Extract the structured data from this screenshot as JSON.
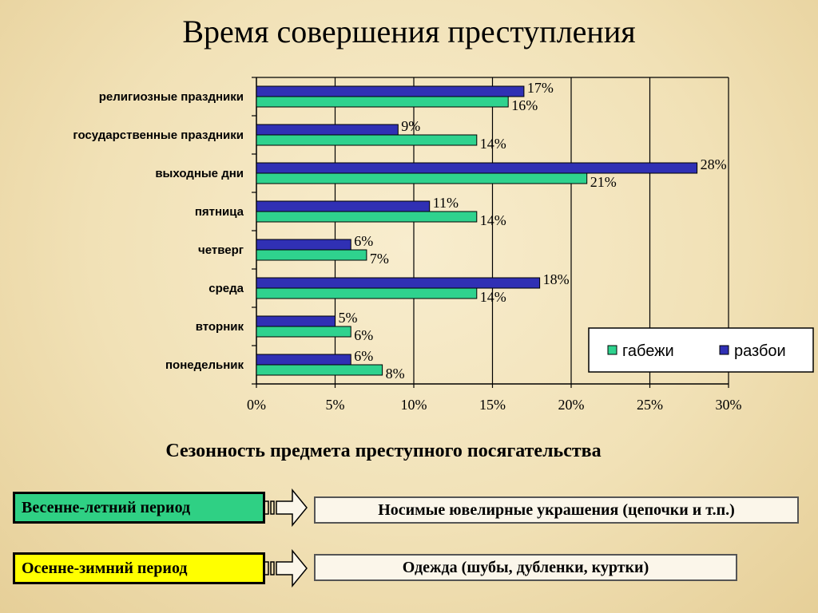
{
  "slide": {
    "title": "Время совершения преступления",
    "subtitle": "Сезонность предмета преступного посягательства"
  },
  "chart_data": {
    "type": "bar",
    "orientation": "horizontal",
    "categories": [
      "религиозные праздники",
      "государственные праздники",
      "выходные дни",
      "пятница",
      "четверг",
      "среда",
      "вторник",
      "понедельник"
    ],
    "series": [
      {
        "name": "разбои",
        "values": [
          17,
          9,
          28,
          11,
          6,
          18,
          5,
          6
        ],
        "color": "#3030b4"
      },
      {
        "name": "габежи",
        "values": [
          16,
          14,
          21,
          14,
          7,
          14,
          6,
          8
        ],
        "color": "#2fd28e"
      }
    ],
    "value_suffix": "%",
    "xlim": [
      0,
      30
    ],
    "xticks": [
      0,
      5,
      10,
      15,
      20,
      25,
      30
    ],
    "xtick_labels": [
      "0%",
      "5%",
      "10%",
      "15%",
      "20%",
      "25%",
      "30%"
    ],
    "grid": "vertical",
    "legend": {
      "placement": "bottom-right",
      "order": [
        "габежи",
        "разбои"
      ]
    }
  },
  "seasons": [
    {
      "period": "Весенне-летний период",
      "item": "Носимые ювелирные украшения (цепочки и т.п.)",
      "color": "#2fd084"
    },
    {
      "period": "Осенне-зимний период",
      "item": "Одежда (шубы, дубленки, куртки)",
      "color": "#ffff00"
    }
  ]
}
